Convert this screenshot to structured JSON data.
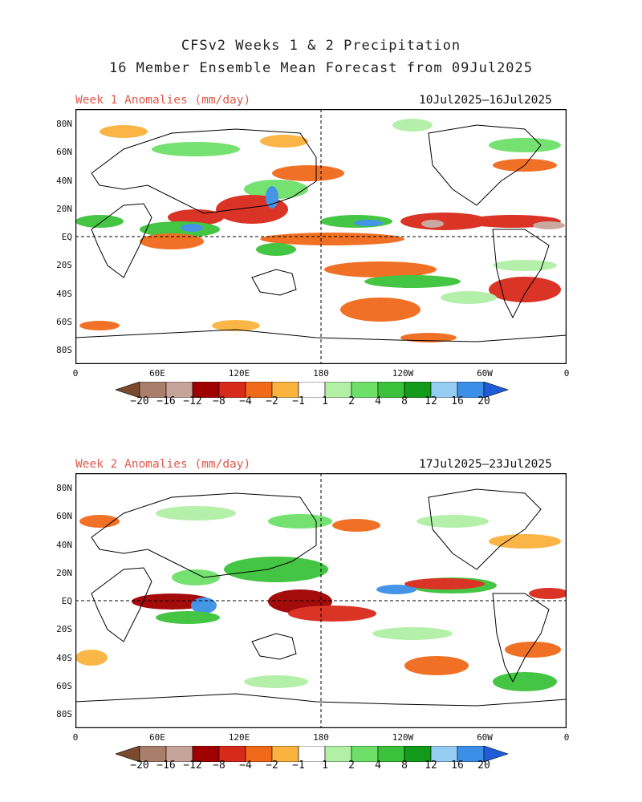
{
  "title_line1": "CFSv2 Weeks 1 & 2 Precipitation",
  "title_line2": "16 Member Ensemble Mean Forecast from 09Jul2025",
  "panels": [
    {
      "label": "Week 1 Anomalies (mm/day)",
      "dates": "10Jul2025—16Jul2025"
    },
    {
      "label": "Week 2 Anomalies (mm/day)",
      "dates": "17Jul2025—23Jul2025"
    }
  ],
  "lat_ticks": [
    "80N",
    "60N",
    "40N",
    "20N",
    "EQ",
    "20S",
    "40S",
    "60S",
    "80S"
  ],
  "lon_ticks": [
    "0",
    "60E",
    "120E",
    "180",
    "120W",
    "60W",
    "0"
  ],
  "colorbar": {
    "labels": [
      "−20",
      "−16",
      "−12",
      "−8",
      "−4",
      "−2",
      "−1",
      "1",
      "2",
      "4",
      "8",
      "12",
      "16",
      "20"
    ],
    "colors": [
      "#7a4a2e",
      "#a97f6b",
      "#c7a49a",
      "#a00000",
      "#d72a1a",
      "#f06a1a",
      "#fbb23e",
      "#ffffff",
      "#b2f0a6",
      "#6ee06a",
      "#3cc23a",
      "#129a1a",
      "#94ccf2",
      "#3b8fe6",
      "#1f5dd8"
    ]
  }
}
